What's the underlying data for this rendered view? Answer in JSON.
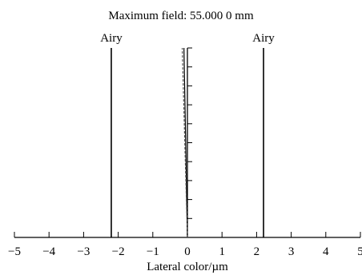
{
  "chart_data": {
    "type": "line",
    "title": "Maximum field: 55.000 0 mm",
    "xlabel": "Lateral color/µm",
    "ylabel": "",
    "xlim": [
      -5,
      5
    ],
    "ylim": [
      0,
      1
    ],
    "xticks": [
      -5,
      -4,
      -3,
      -2,
      -1,
      0,
      1,
      2,
      3,
      4,
      5
    ],
    "yticks": [
      0,
      0.1,
      0.2,
      0.3,
      0.4,
      0.5,
      0.6,
      0.7,
      0.8,
      0.9,
      1.0
    ],
    "grid": false,
    "airy_limits": [
      {
        "label": "Airy",
        "x": -2.2
      },
      {
        "label": "Airy",
        "x": 2.2
      }
    ],
    "series": [
      {
        "x": [
          0.0,
          -0.01,
          -0.02,
          -0.03,
          -0.04,
          -0.05,
          -0.06,
          -0.07,
          -0.08,
          -0.09,
          -0.1
        ],
        "y": [
          0.0,
          0.1,
          0.2,
          0.3,
          0.4,
          0.5,
          0.6,
          0.7,
          0.8,
          0.9,
          1.0
        ],
        "color": "#000000",
        "style": "solid"
      },
      {
        "x": [
          0.0,
          -0.015,
          -0.03,
          -0.045,
          -0.06,
          -0.075,
          -0.09,
          -0.105,
          -0.12,
          -0.135,
          -0.15
        ],
        "y": [
          0.0,
          0.1,
          0.2,
          0.3,
          0.4,
          0.5,
          0.6,
          0.7,
          0.8,
          0.9,
          1.0
        ],
        "color": "#555555",
        "style": "dashed"
      }
    ]
  }
}
